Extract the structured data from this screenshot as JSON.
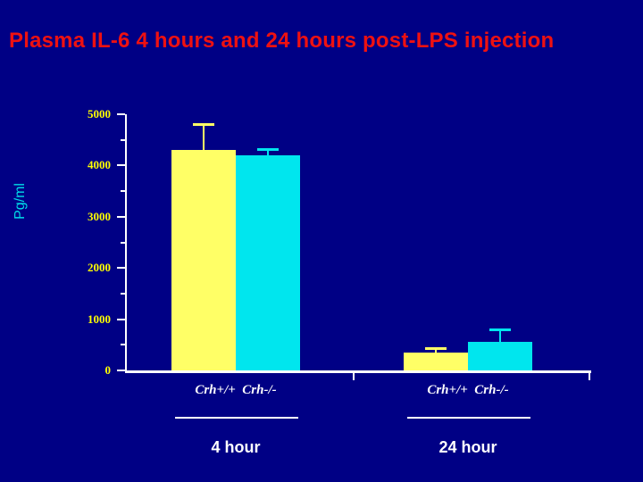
{
  "slide": {
    "title": "Plasma IL-6 4 hours and 24 hours post-LPS injection"
  },
  "chart_data": {
    "type": "bar",
    "title": "Plasma IL-6 4 hours and 24 hours post-LPS injection",
    "ylabel": "Pg/ml",
    "xlabel": "",
    "ylim": [
      0,
      5000
    ],
    "yticks": [
      0,
      1000,
      2000,
      3000,
      4000,
      5000
    ],
    "grid": false,
    "legend": "none",
    "groups": [
      {
        "label": "4 hour",
        "categories": [
          "Crh+/+",
          "Crh-/-"
        ],
        "series": [
          {
            "name": "Crh+/+",
            "value": 4300,
            "error": 500
          },
          {
            "name": "Crh-/-",
            "value": 4200,
            "error": 120
          }
        ]
      },
      {
        "label": "24 hour",
        "categories": [
          "Crh+/+",
          "Crh-/-"
        ],
        "series": [
          {
            "name": "Crh+/+",
            "value": 350,
            "error": 80
          },
          {
            "name": "Crh-/-",
            "value": 550,
            "error": 260
          }
        ]
      }
    ],
    "colors": {
      "Crh+/+": "#ffff66",
      "Crh-/-": "#00e6ee"
    }
  },
  "theme": {
    "background": "#000085",
    "title_color": "#ee1111",
    "axis_color": "#ffffff",
    "ytick_label_color": "#ffff00",
    "ylabel_color": "#00dde8",
    "group_label_color": "#ffffff"
  }
}
